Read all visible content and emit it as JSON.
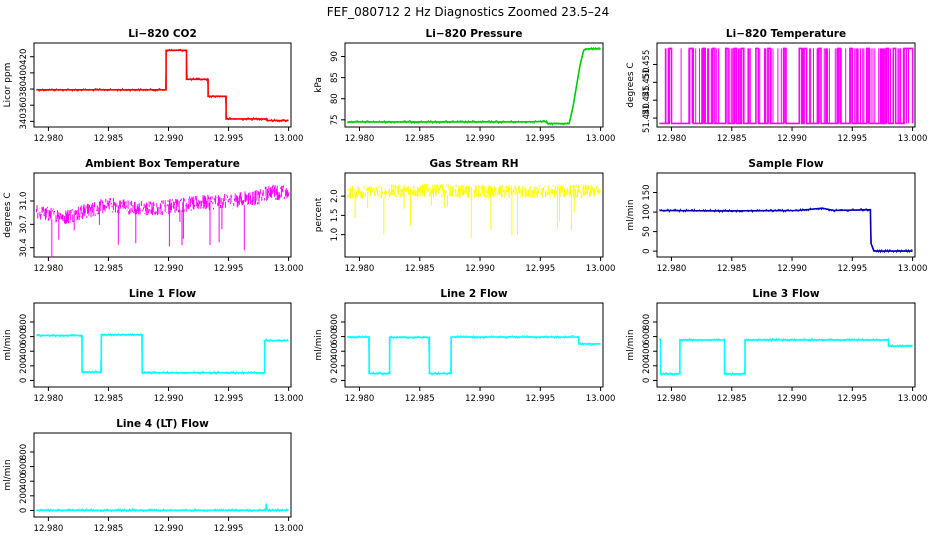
{
  "figure": {
    "title": "FEF_080712  2 Hz Diagnostics Zoomed 23.5–24"
  },
  "chart_data": [
    {
      "type": "line",
      "title": "Li−820 CO2",
      "ylabel": "Licor ppm",
      "color": "#ff0000",
      "xlim": [
        12.9788,
        13.0002
      ],
      "x_ticks": [
        "12.980",
        "12.985",
        "12.990",
        "12.995",
        "13.000"
      ],
      "ylim": [
        333,
        437
      ],
      "y_ticks": [
        "340",
        "360",
        "380",
        "400",
        "420"
      ],
      "series": [
        {
          "style": "steps",
          "x": [
            12.979,
            12.9898,
            12.9898,
            12.9915,
            12.9915,
            12.9933,
            12.9933,
            12.9948,
            12.9948,
            12.9982,
            12.9982,
            13.0
          ],
          "y": [
            379,
            379,
            428,
            428,
            392,
            392,
            371,
            371,
            343,
            343,
            341,
            341
          ]
        }
      ]
    },
    {
      "type": "line",
      "title": "Li−820 Pressure",
      "ylabel": "kPa",
      "color": "#00cc00",
      "xlim": [
        12.9788,
        13.0002
      ],
      "x_ticks": [
        "12.980",
        "12.985",
        "12.990",
        "12.995",
        "13.000"
      ],
      "ylim": [
        73.3,
        93.2
      ],
      "y_ticks": [
        "75",
        "80",
        "85",
        "90"
      ],
      "series": [
        {
          "style": "line",
          "x": [
            12.979,
            12.993,
            12.9955,
            12.9956,
            12.9974,
            12.9977,
            12.998,
            12.9983,
            12.9986,
            12.9989,
            13.0
          ],
          "y": [
            74.5,
            74.5,
            74.6,
            74.1,
            74.1,
            78,
            83,
            88,
            91.5,
            91.8,
            91.8
          ]
        }
      ]
    },
    {
      "type": "line",
      "title": "Li−820 Temperature",
      "ylabel": "degrees C",
      "color": "#ff00ff",
      "xlim": [
        12.9788,
        13.0002
      ],
      "x_ticks": [
        "12.980",
        "12.985",
        "12.990",
        "12.995",
        "13.000"
      ],
      "ylim": [
        51.4375,
        51.461
      ],
      "y_ticks": [
        "51.440",
        "51.445",
        "51.450",
        "51.455"
      ],
      "series": [
        {
          "style": "toggle",
          "low": 51.4385,
          "high": 51.4595,
          "x": [
            12.979,
            12.9798,
            12.98,
            12.9815,
            12.9818,
            12.9826,
            12.9828,
            12.9834,
            12.9836,
            12.9845,
            12.9847,
            12.9852,
            12.9854,
            12.9858,
            12.986,
            12.987,
            12.9872,
            12.988,
            12.9882,
            12.9893,
            12.9895,
            12.9906,
            12.9908,
            12.991,
            12.9912,
            12.9922,
            12.9924,
            12.9938,
            12.994,
            12.9948,
            12.995,
            12.9962,
            12.9964,
            12.9978,
            12.998,
            12.9984,
            12.9986,
            12.9993,
            13.0
          ]
        }
      ]
    },
    {
      "type": "line",
      "title": "Ambient Box Temperature",
      "ylabel": "degrees C",
      "color": "#ff00ff",
      "xlim": [
        12.9788,
        13.0002
      ],
      "x_ticks": [
        "12.980",
        "12.985",
        "12.990",
        "12.995",
        "13.000"
      ],
      "ylim": [
        30.28,
        31.36
      ],
      "y_ticks": [
        "30.4",
        "30.7",
        "31.0"
      ],
      "series": [
        {
          "style": "noise",
          "band": 0.2,
          "x": [
            12.979,
            12.9815,
            12.985,
            12.9885,
            12.992,
            12.995,
            12.9975,
            12.9985,
            13.0
          ],
          "y": [
            30.85,
            30.8,
            30.95,
            30.9,
            30.97,
            31.0,
            31.05,
            31.12,
            31.1
          ]
        }
      ]
    },
    {
      "type": "line",
      "title": "Gas Stream RH",
      "ylabel": "percent",
      "color": "#ffff00",
      "xlim": [
        12.9788,
        13.0002
      ],
      "x_ticks": [
        "12.980",
        "12.985",
        "12.990",
        "12.995",
        "13.000"
      ],
      "ylim": [
        0.42,
        2.6
      ],
      "y_ticks": [
        "1.0",
        "1.5",
        "2.0"
      ],
      "series": [
        {
          "style": "noise",
          "band": 0.35,
          "x": [
            12.979,
            12.9855,
            12.989,
            12.993,
            12.997,
            13.0
          ],
          "y": [
            2.1,
            2.15,
            2.12,
            2.1,
            2.13,
            2.12
          ]
        }
      ]
    },
    {
      "type": "line",
      "title": "Sample Flow",
      "ylabel": "ml/min",
      "color": "#0000bb",
      "xlim": [
        12.9788,
        13.0002
      ],
      "x_ticks": [
        "12.980",
        "12.985",
        "12.990",
        "12.995",
        "13.000"
      ],
      "ylim": [
        -15,
        200
      ],
      "y_ticks": [
        "0",
        "50",
        "100",
        "150"
      ],
      "series": [
        {
          "style": "line",
          "x": [
            12.979,
            12.984,
            12.9905,
            12.9925,
            12.9935,
            12.9965,
            12.99655,
            12.9968,
            13.0
          ],
          "y": [
            104,
            103,
            104,
            110,
            104,
            106,
            20,
            0,
            0
          ]
        }
      ]
    },
    {
      "type": "line",
      "title": "Line 1 Flow",
      "ylabel": "ml/min",
      "color": "#00ffff",
      "xlim": [
        12.9788,
        13.0002
      ],
      "x_ticks": [
        "12.980",
        "12.985",
        "12.990",
        "12.995",
        "13.000"
      ],
      "ylim": [
        -90,
        1060
      ],
      "y_ticks": [
        "0",
        "200",
        "400",
        "600",
        "800"
      ],
      "series": [
        {
          "style": "steps",
          "x": [
            12.979,
            12.9828,
            12.9828,
            12.9844,
            12.9844,
            12.9878,
            12.9878,
            12.998,
            12.998,
            13.0
          ],
          "y": [
            615,
            615,
            115,
            115,
            625,
            625,
            105,
            105,
            545,
            545
          ]
        }
      ]
    },
    {
      "type": "line",
      "title": "Line 2 Flow",
      "ylabel": "ml/min",
      "color": "#00ffff",
      "xlim": [
        12.9788,
        13.0002
      ],
      "x_ticks": [
        "12.980",
        "12.985",
        "12.990",
        "12.995",
        "13.000"
      ],
      "ylim": [
        -90,
        1060
      ],
      "y_ticks": [
        "0",
        "200",
        "400",
        "600",
        "800"
      ],
      "series": [
        {
          "style": "steps",
          "x": [
            12.979,
            12.9808,
            12.9808,
            12.9825,
            12.9825,
            12.9858,
            12.9858,
            12.9876,
            12.9876,
            12.9982,
            12.9982,
            13.0
          ],
          "y": [
            595,
            595,
            95,
            95,
            590,
            590,
            95,
            95,
            595,
            595,
            500,
            500
          ]
        }
      ]
    },
    {
      "type": "line",
      "title": "Line 3 Flow",
      "ylabel": "ml/min",
      "color": "#00ffff",
      "xlim": [
        12.9788,
        13.0002
      ],
      "x_ticks": [
        "12.980",
        "12.985",
        "12.990",
        "12.995",
        "13.000"
      ],
      "ylim": [
        -90,
        1060
      ],
      "y_ticks": [
        "0",
        "200",
        "400",
        "600",
        "800"
      ],
      "series": [
        {
          "style": "steps",
          "x": [
            12.979,
            12.9791,
            12.9791,
            12.9807,
            12.9807,
            12.9844,
            12.9844,
            12.9861,
            12.9861,
            12.998,
            12.998,
            13.0
          ],
          "y": [
            560,
            560,
            90,
            90,
            555,
            555,
            90,
            90,
            555,
            555,
            470,
            470
          ]
        }
      ]
    },
    {
      "type": "line",
      "title": "Line 4 (LT) Flow",
      "ylabel": "ml/min",
      "color": "#00ffff",
      "xlim": [
        12.9788,
        13.0002
      ],
      "x_ticks": [
        "12.980",
        "12.985",
        "12.990",
        "12.995",
        "13.000"
      ],
      "ylim": [
        -90,
        1060
      ],
      "y_ticks": [
        "0",
        "200",
        "400",
        "600",
        "800"
      ],
      "series": [
        {
          "style": "line",
          "x": [
            12.979,
            12.9981,
            12.99815,
            12.9982,
            12.9983,
            13.0
          ],
          "y": [
            2,
            2,
            95,
            15,
            3,
            3
          ]
        }
      ]
    }
  ]
}
